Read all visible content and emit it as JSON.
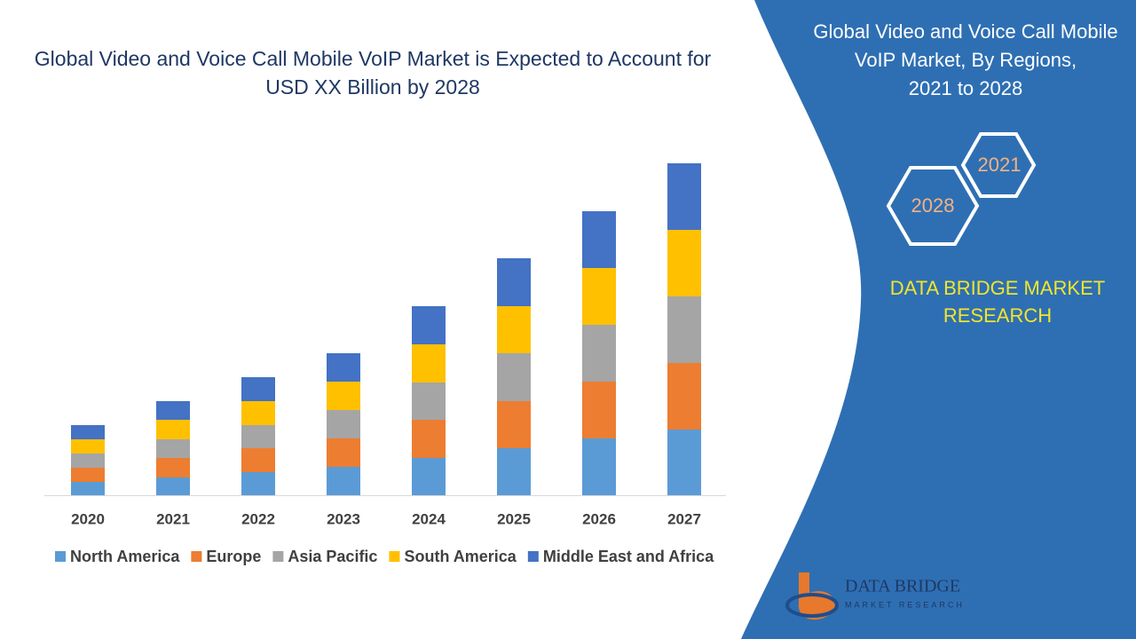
{
  "chart_data": {
    "type": "bar",
    "stacked": true,
    "title": "Global Video and Voice Call Mobile VoIP Market is Expected to Account for USD XX Billion by 2028",
    "categories": [
      "2020",
      "2021",
      "2022",
      "2023",
      "2024",
      "2025",
      "2026",
      "2027"
    ],
    "series": [
      {
        "name": "North America",
        "color": "#5b9bd5",
        "values": [
          15,
          20,
          26,
          32,
          42,
          53,
          64,
          74
        ]
      },
      {
        "name": "Europe",
        "color": "#ed7d31",
        "values": [
          16,
          22,
          27,
          32,
          43,
          53,
          64,
          75
        ]
      },
      {
        "name": "Asia Pacific",
        "color": "#a5a5a5",
        "values": [
          16,
          21,
          26,
          32,
          42,
          54,
          64,
          75
        ]
      },
      {
        "name": "South America",
        "color": "#ffc000",
        "values": [
          16,
          22,
          27,
          32,
          43,
          53,
          64,
          75
        ]
      },
      {
        "name": "Middle East and Africa",
        "color": "#4472c4",
        "values": [
          16,
          21,
          27,
          32,
          43,
          54,
          64,
          75
        ]
      }
    ]
  },
  "side_panel": {
    "title_lines": [
      "Global Video and Voice Call Mobile",
      "VoIP Market, By Regions,",
      "2021 to 2028"
    ],
    "hex_labels": [
      "2021",
      "2028"
    ],
    "brand_lines": [
      "DATA BRIDGE MARKET",
      "RESEARCH"
    ]
  },
  "logo": {
    "name": "DATA BRIDGE",
    "tagline": "MARKET RESEARCH"
  }
}
